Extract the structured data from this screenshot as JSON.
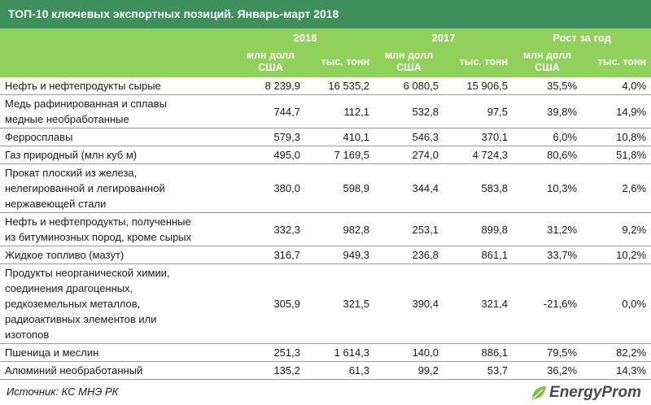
{
  "title": "ТОП-10 ключевых экспортных позиций. Январь-март 2018",
  "header": {
    "groups": [
      "2018",
      "2017",
      "Рост за год"
    ],
    "units": [
      "млн долл США",
      "тыс. тонн",
      "млн долл США",
      "тыс. тонн",
      "млн долл США",
      "тыс. тонн"
    ]
  },
  "rows": [
    {
      "name": [
        "Нефть и нефтепродукты сырые"
      ],
      "v2018_usd": "8 239,9",
      "v2018_t": "16 535,2",
      "v2017_usd": "6 080,5",
      "v2017_t": "15 906,5",
      "g_usd": "35,5%",
      "g_t": "4,0%"
    },
    {
      "name": [
        "Медь рафинированная и сплавы",
        "медные необработанные"
      ],
      "v2018_usd": "744,7",
      "v2018_t": "112,1",
      "v2017_usd": "532,8",
      "v2017_t": "97,5",
      "g_usd": "39,8%",
      "g_t": "14,9%"
    },
    {
      "name": [
        "Ферросплавы"
      ],
      "v2018_usd": "579,3",
      "v2018_t": "410,1",
      "v2017_usd": "546,3",
      "v2017_t": "370,1",
      "g_usd": "6,0%",
      "g_t": "10,8%"
    },
    {
      "name": [
        "Газ природный (млн куб м)"
      ],
      "v2018_usd": "495,0",
      "v2018_t": "7 169,5",
      "v2017_usd": "274,0",
      "v2017_t": "4 724,3",
      "g_usd": "80,6%",
      "g_t": "51,8%"
    },
    {
      "name": [
        "Прокат плоский из железа,",
        "нелегированной  и легированной",
        "нержавеющей стали"
      ],
      "v2018_usd": "380,0",
      "v2018_t": "598,9",
      "v2017_usd": "344,4",
      "v2017_t": "583,8",
      "g_usd": "10,3%",
      "g_t": "2,6%"
    },
    {
      "name": [
        "Нефть и нефтепродукты, полученные",
        "из битуминозных пород, кроме сырых"
      ],
      "v2018_usd": "332,3",
      "v2018_t": "982,8",
      "v2017_usd": "253,1",
      "v2017_t": "899,8",
      "g_usd": "31,2%",
      "g_t": "9,2%"
    },
    {
      "name": [
        "Жидкое топливо (мазут)"
      ],
      "v2018_usd": "316,7",
      "v2018_t": "949,3",
      "v2017_usd": "236,8",
      "v2017_t": "861,1",
      "g_usd": "33,7%",
      "g_t": "10,2%"
    },
    {
      "name": [
        "Продукты неорганической химии,",
        "соединения драгоценных,",
        "редкоземельных металлов,",
        "радиоактивных элементов или",
        "изотопов"
      ],
      "v2018_usd": "305,9",
      "v2018_t": "321,5",
      "v2017_usd": "390,4",
      "v2017_t": "321,4",
      "g_usd": "-21,6%",
      "g_t": "0,0%"
    },
    {
      "name": [
        "Пшеница и меслин"
      ],
      "v2018_usd": "251,3",
      "v2018_t": "1 614,3",
      "v2017_usd": "140,0",
      "v2017_t": "886,1",
      "g_usd": "79,5%",
      "g_t": "82,2%"
    },
    {
      "name": [
        "Алюминий необработанный"
      ],
      "v2018_usd": "135,2",
      "v2018_t": "61,3",
      "v2017_usd": "99,2",
      "v2017_t": "53,7",
      "g_usd": "36,2%",
      "g_t": "14,3%"
    }
  ],
  "footer": {
    "source": "Источник: КС МНЭ РК",
    "logo_text": "EnergyProm"
  },
  "colors": {
    "title_bg": "#3f8f5c",
    "header_bg": "#8fd15a",
    "logo_green": "#7cc242"
  }
}
